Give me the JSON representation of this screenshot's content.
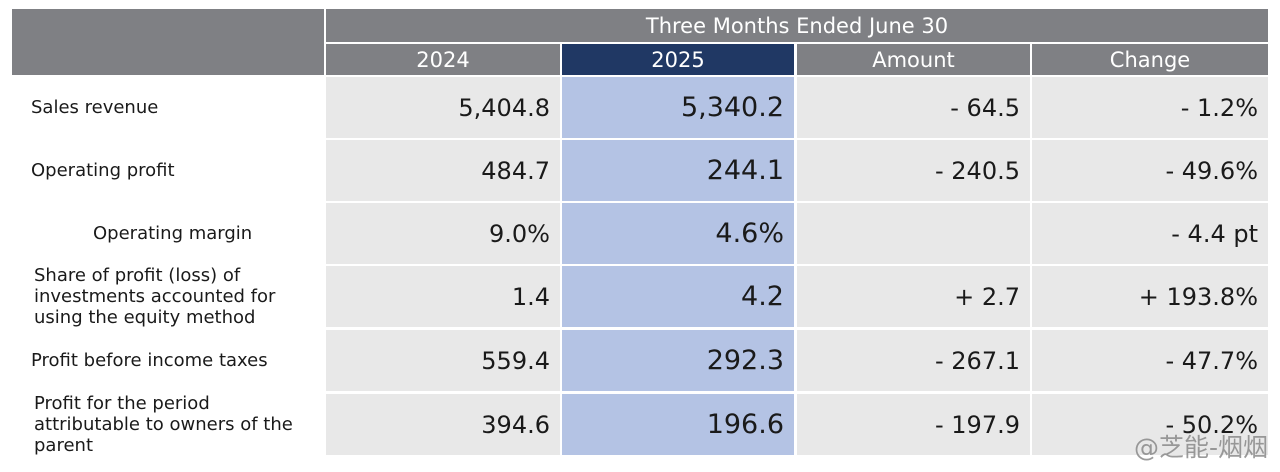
{
  "header": {
    "period": "Three Months Ended June 30",
    "columns": [
      "2024",
      "2025",
      "Amount",
      "Change"
    ]
  },
  "rows": [
    {
      "label": "Sales revenue",
      "y2024": "5,404.8",
      "y2025": "5,340.2",
      "amount": "- 64.5",
      "change": "- 1.2%"
    },
    {
      "label": "Operating profit",
      "y2024": "484.7",
      "y2025": "244.1",
      "amount": "- 240.5",
      "change": "- 49.6%"
    },
    {
      "label": "Operating margin",
      "y2024": "9.0%",
      "y2025": "4.6%",
      "amount": "",
      "change": "- 4.4 pt"
    },
    {
      "label": "Share of profit (loss) of investments accounted for using the equity method",
      "y2024": "1.4",
      "y2025": "4.2",
      "amount": "+ 2.7",
      "change": "+ 193.8%"
    },
    {
      "label": "Profit before income taxes",
      "y2024": "559.4",
      "y2025": "292.3",
      "amount": "- 267.1",
      "change": "- 47.7%"
    },
    {
      "label": "Profit for the period attributable to owners of the parent",
      "y2024": "394.6",
      "y2025": "196.6",
      "amount": "- 197.9",
      "change": "- 50.2%"
    }
  ],
  "watermark": "@芝能-烟烟",
  "colors": {
    "header_gray": "#7f8084",
    "header_highlight": "#203864",
    "highlight_fill": "#b4c3e4",
    "cell_fill": "#e8e8e8"
  }
}
